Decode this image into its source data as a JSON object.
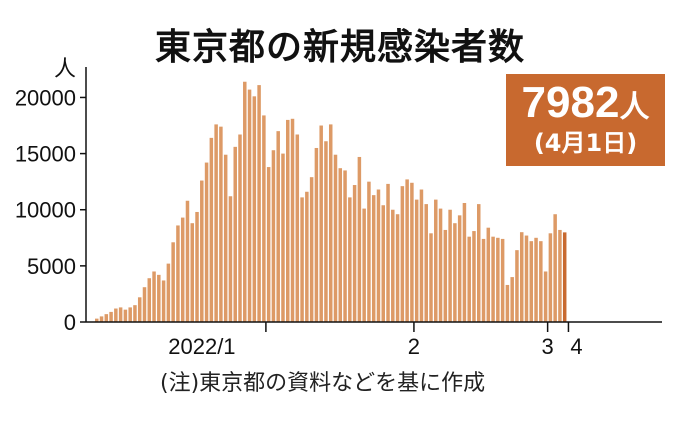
{
  "chart_data": {
    "type": "bar",
    "title": "東京都の新規感染者数",
    "ylabel": "人",
    "ylim": [
      0,
      22000
    ],
    "yticks": [
      "0",
      "5000",
      "10000",
      "15000",
      "20000"
    ],
    "x_tick_labels": [
      "2022/1",
      "2",
      "3",
      "4"
    ],
    "series": [
      {
        "values": [
          300,
          500,
          700,
          900,
          1200,
          1300,
          1100,
          1300,
          1500,
          2200,
          3100,
          3900,
          4500,
          4200,
          3700,
          5200,
          7100,
          8600,
          9300,
          10800,
          8800,
          9800,
          12600,
          14200,
          16400,
          17600,
          17400,
          14900,
          11200,
          15600,
          16700,
          21400,
          20700,
          20100,
          21100,
          18400,
          13800,
          15300,
          17000,
          15000,
          18000,
          18100,
          16700,
          11100,
          11600,
          12900,
          15500,
          17500,
          16100,
          17600,
          14900,
          13700,
          13500,
          11100,
          12200,
          14700,
          10100,
          12500,
          11300,
          11800,
          10400,
          12300,
          10000,
          9600,
          12100,
          12700,
          12400,
          10900,
          11800,
          10500,
          7900,
          10900,
          10100,
          8200,
          10000,
          8800,
          9500,
          10600,
          7600,
          8100,
          10500,
          7400,
          8400,
          7600,
          7500,
          7400,
          3300,
          4000,
          6400,
          8000,
          7700,
          7200,
          7500,
          7200,
          4500,
          7900,
          9600,
          8200,
          7982
        ]
      }
    ],
    "highlight_last": true,
    "colors": {
      "bar": "#dd9a66",
      "bar_last": "#c8692f",
      "axis": "#111111"
    }
  },
  "callout": {
    "value": "7982",
    "unit": "人",
    "date": "(4月1日)"
  },
  "note": "(注)東京都の資料などを基に作成"
}
